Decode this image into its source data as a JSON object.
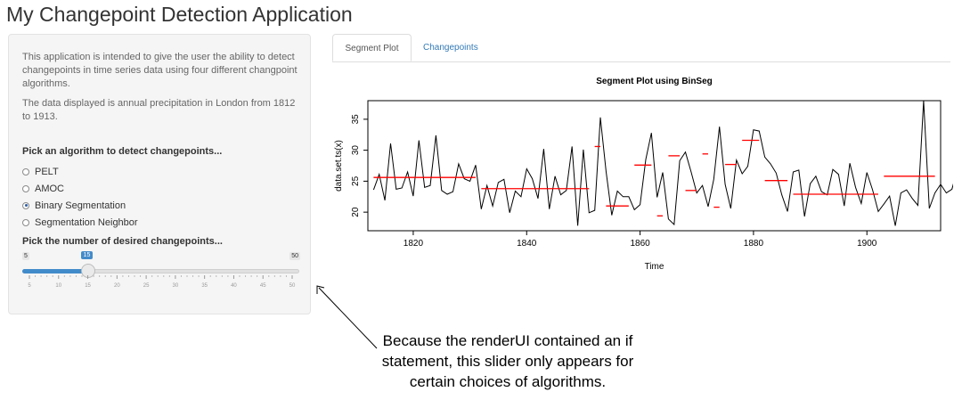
{
  "app": {
    "title": "My Changepoint Detection Application"
  },
  "sidebar": {
    "description_1": "This application is intended to give the user the ability to detect changepoints in time series data using four different changpoint algorithms.",
    "description_2": "The data displayed is annual precipitation in London from 1812 to 1913.",
    "algorithm_label": "Pick an algorithm to detect changepoints...",
    "algorithms": [
      {
        "label": "PELT",
        "selected": false
      },
      {
        "label": "AMOC",
        "selected": false
      },
      {
        "label": "Binary Segmentation",
        "selected": true
      },
      {
        "label": "Segmentation Neighbor",
        "selected": false
      }
    ],
    "slider": {
      "label": "Pick the number of desired changepoints...",
      "min": 5,
      "max": 50,
      "value": 15,
      "min_label": "5",
      "max_label": "50",
      "value_label": "15",
      "ticks": [
        "5",
        "10",
        "15",
        "20",
        "25",
        "30",
        "35",
        "40",
        "45",
        "50"
      ],
      "accent": "#428bca"
    }
  },
  "tabs": [
    {
      "label": "Segment Plot",
      "active": true
    },
    {
      "label": "Changepoints",
      "active": false
    }
  ],
  "chart_data": {
    "type": "line",
    "title": "Segment Plot using BinSeg",
    "xlabel": "Time",
    "ylabel": "data.set.ts(x)",
    "xlim": [
      1812,
      1913
    ],
    "ylim": [
      17,
      38
    ],
    "xticks": [
      1820,
      1840,
      1860,
      1880,
      1900
    ],
    "yticks": [
      20,
      25,
      30,
      35
    ],
    "series_color": "#000000",
    "segment_color": "#ff0000",
    "x_start": 1813,
    "values": [
      23.6,
      26.1,
      21.9,
      31.1,
      23.7,
      23.9,
      26.5,
      22.6,
      31.6,
      24.0,
      24.3,
      32.4,
      23.5,
      22.9,
      23.3,
      27.8,
      25.4,
      25.0,
      27.6,
      20.5,
      24.3,
      21.0,
      24.8,
      25.3,
      19.9,
      23.4,
      22.5,
      27.0,
      25.4,
      22.2,
      30.2,
      20.5,
      25.8,
      22.8,
      23.5,
      30.6,
      17.8,
      30.1,
      19.9,
      20.3,
      35.3,
      26.6,
      19.5,
      23.4,
      22.5,
      22.5,
      20.4,
      21.2,
      28.5,
      32.8,
      22.4,
      26.4,
      18.9,
      18.0,
      28.3,
      29.7,
      26.5,
      23.1,
      24.3,
      20.9,
      25.3,
      33.8,
      24.5,
      20.6,
      28.4,
      26.2,
      27.4,
      33.3,
      33.1,
      28.9,
      27.8,
      26.3,
      22.8,
      20.1,
      26.5,
      26.8,
      19.3,
      24.6,
      25.8,
      23.3,
      22.8,
      26.9,
      26.1,
      21.0,
      27.9,
      24.0,
      21.4,
      26.4,
      23.6,
      20.1,
      21.3,
      22.6,
      17.8,
      23.1,
      23.6,
      22.2,
      21.1,
      38.0,
      20.6,
      23.1,
      24.5,
      23.1,
      23.7,
      27.1,
      25.7,
      24.8,
      28.0
    ],
    "segments": [
      {
        "x0": 1813,
        "x1": 1831,
        "y": 25.6
      },
      {
        "x0": 1832,
        "x1": 1851,
        "y": 23.8
      },
      {
        "x0": 1852,
        "x1": 1853,
        "y": 30.6
      },
      {
        "x0": 1854,
        "x1": 1858,
        "y": 21.0
      },
      {
        "x0": 1859,
        "x1": 1862,
        "y": 27.6
      },
      {
        "x0": 1863,
        "x1": 1864,
        "y": 19.4
      },
      {
        "x0": 1865,
        "x1": 1867,
        "y": 29.1
      },
      {
        "x0": 1868,
        "x1": 1870,
        "y": 23.5
      },
      {
        "x0": 1871,
        "x1": 1872,
        "y": 29.4
      },
      {
        "x0": 1873,
        "x1": 1874,
        "y": 20.8
      },
      {
        "x0": 1875,
        "x1": 1877,
        "y": 27.7
      },
      {
        "x0": 1878,
        "x1": 1881,
        "y": 31.6
      },
      {
        "x0": 1882,
        "x1": 1886,
        "y": 25.1
      },
      {
        "x0": 1887,
        "x1": 1902,
        "y": 22.9
      },
      {
        "x0": 1903,
        "x1": 1912,
        "y": 25.8
      }
    ]
  },
  "annotation": {
    "text": "Because the renderUI contained an if statement, this slider only appears for certain choices of algorithms."
  }
}
